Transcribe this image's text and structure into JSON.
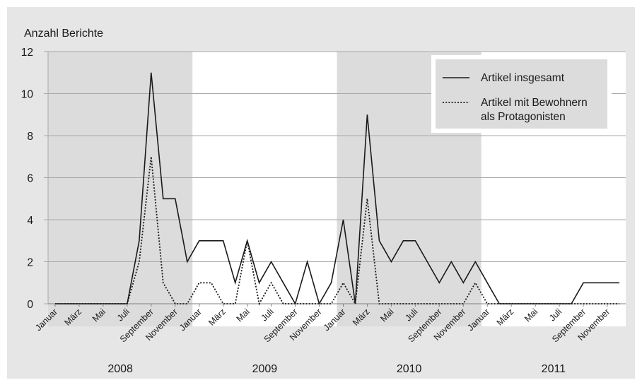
{
  "chart_data": {
    "type": "line",
    "ylabel": "Anzahl Berichte",
    "ylim": [
      0,
      12
    ],
    "yticks": [
      0,
      2,
      4,
      6,
      8,
      10,
      12
    ],
    "grid": true,
    "legend_position": "top-right",
    "x_tick_labels": [
      "Januar",
      "März",
      "Mai",
      "Juli",
      "September",
      "November",
      "Januar",
      "März",
      "Mai",
      "Juli",
      "September",
      "November",
      "Januar",
      "März",
      "Mai",
      "Juli",
      "September",
      "November",
      "Januar",
      "März",
      "Mai",
      "Juli",
      "September",
      "November"
    ],
    "year_groups": [
      {
        "label": "2008",
        "shaded": true
      },
      {
        "label": "2009",
        "shaded": false
      },
      {
        "label": "2010",
        "shaded": true
      },
      {
        "label": "2011",
        "shaded": false
      }
    ],
    "colors": {
      "band": "#dcdcdc",
      "background": "#e6e6e6",
      "grid": "#a8a8a8",
      "line": "#1a1a1a"
    },
    "series": [
      {
        "name": "Artikel insgesamt",
        "style": "solid",
        "values": [
          0,
          0,
          0,
          0,
          0,
          0,
          0,
          3,
          11,
          5,
          5,
          2,
          3,
          3,
          3,
          1,
          3,
          1,
          2,
          1,
          0,
          2,
          0,
          1,
          4,
          0,
          9,
          3,
          2,
          3,
          3,
          2,
          1,
          2,
          1,
          2,
          1,
          0,
          0,
          0,
          0,
          0,
          0,
          0,
          1,
          1,
          1,
          1
        ]
      },
      {
        "name": "Artikel mit Bewohnern als Protagonisten",
        "legend_lines": [
          "Artikel mit Bewohnern",
          "als Protagonisten"
        ],
        "style": "dotted",
        "values": [
          0,
          0,
          0,
          0,
          0,
          0,
          0,
          2,
          7,
          1,
          0,
          0,
          1,
          1,
          0,
          0,
          3,
          0,
          1,
          0,
          0,
          0,
          0,
          0,
          1,
          0,
          5,
          0,
          0,
          0,
          0,
          0,
          0,
          0,
          0,
          1,
          0,
          0,
          0,
          0,
          0,
          0,
          0,
          0,
          0,
          0,
          0,
          0
        ]
      }
    ]
  }
}
